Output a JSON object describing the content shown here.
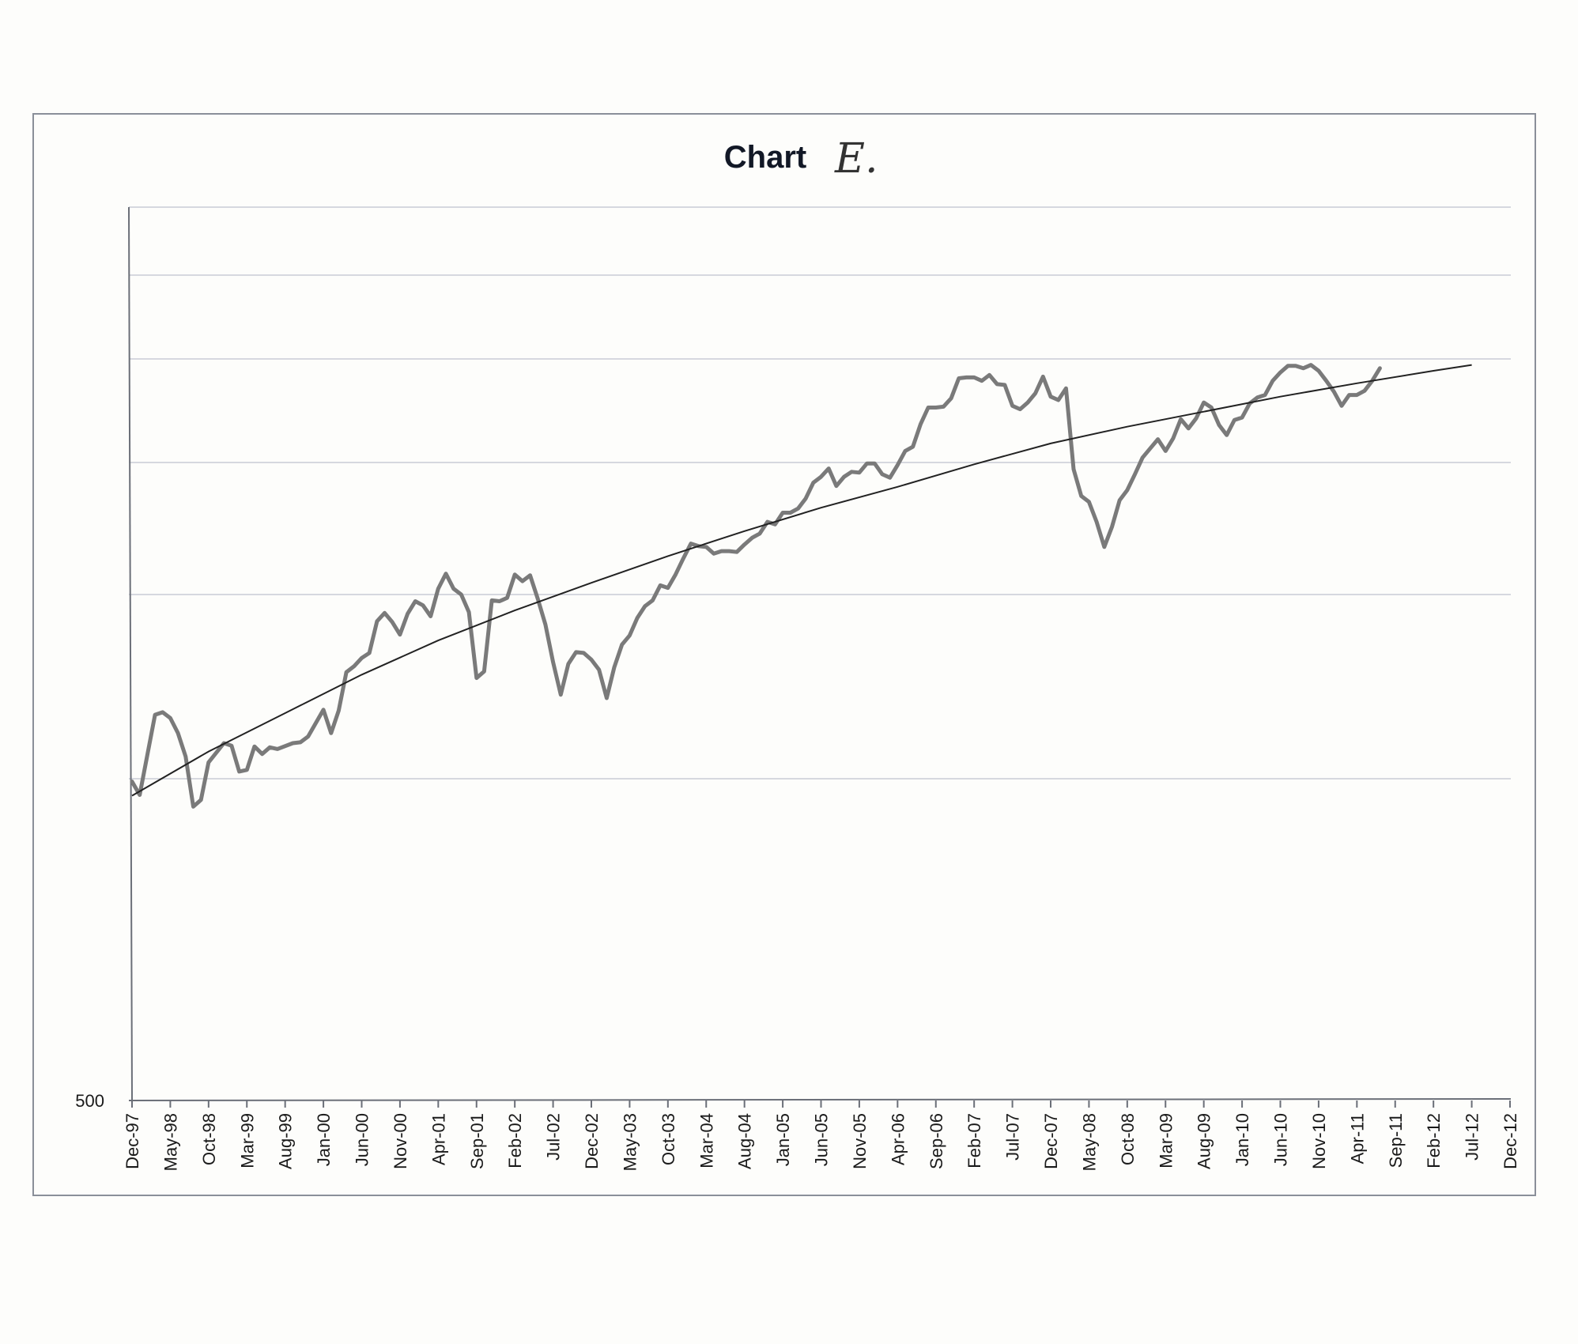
{
  "chart_data": {
    "type": "line",
    "title": "Chart",
    "annotation": "E.",
    "xlabel": "",
    "ylabel": "",
    "ylim": [
      500,
      1570
    ],
    "y_tick_labels": [
      "500"
    ],
    "grid": "horizontal",
    "x_tick_labels": [
      "Dec-97",
      "May-98",
      "Oct-98",
      "Mar-99",
      "Aug-99",
      "Jan-00",
      "Jun-00",
      "Nov-00",
      "Apr-01",
      "Sep-01",
      "Feb-02",
      "Jul-02",
      "Dec-02",
      "May-03",
      "Oct-03",
      "Mar-04",
      "Aug-04",
      "Jan-05",
      "Jun-05",
      "Nov-05",
      "Apr-06",
      "Sep-06",
      "Feb-07",
      "Jul-07",
      "Dec-07",
      "May-08",
      "Oct-08",
      "Mar-09",
      "Aug-09",
      "Jan-10",
      "Jun-10",
      "Nov-10",
      "Apr-11",
      "Sep-11",
      "Feb-12",
      "Jul-12",
      "Dec-12"
    ],
    "x_range_months": [
      0,
      180
    ],
    "series": [
      {
        "name": "",
        "style": "data",
        "points": [
          [
            0,
            882
          ],
          [
            1,
            866
          ],
          [
            3,
            962
          ],
          [
            4,
            965
          ],
          [
            5,
            958
          ],
          [
            6,
            940
          ],
          [
            7,
            912
          ],
          [
            8,
            852
          ],
          [
            9,
            860
          ],
          [
            10,
            905
          ],
          [
            12,
            928
          ],
          [
            13,
            925
          ],
          [
            14,
            894
          ],
          [
            15,
            896
          ],
          [
            16,
            924
          ],
          [
            17,
            915
          ],
          [
            18,
            923
          ],
          [
            19,
            921
          ],
          [
            21,
            928
          ],
          [
            22,
            929
          ],
          [
            23,
            936
          ],
          [
            25,
            968
          ],
          [
            26,
            940
          ],
          [
            27,
            967
          ],
          [
            28,
            1013
          ],
          [
            29,
            1020
          ],
          [
            30,
            1030
          ],
          [
            31,
            1036
          ],
          [
            32,
            1074
          ],
          [
            33,
            1084
          ],
          [
            34,
            1073
          ],
          [
            35,
            1058
          ],
          [
            36,
            1083
          ],
          [
            37,
            1098
          ],
          [
            38,
            1093
          ],
          [
            39,
            1080
          ],
          [
            40,
            1113
          ],
          [
            41,
            1131
          ],
          [
            42,
            1113
          ],
          [
            43,
            1106
          ],
          [
            44,
            1085
          ],
          [
            45,
            1006
          ],
          [
            46,
            1014
          ],
          [
            47,
            1099
          ],
          [
            48,
            1098
          ],
          [
            49,
            1102
          ],
          [
            50,
            1130
          ],
          [
            51,
            1122
          ],
          [
            52,
            1129
          ],
          [
            53,
            1101
          ],
          [
            54,
            1070
          ],
          [
            55,
            1025
          ],
          [
            56,
            986
          ],
          [
            57,
            1023
          ],
          [
            58,
            1037
          ],
          [
            59,
            1036
          ],
          [
            60,
            1028
          ],
          [
            61,
            1016
          ],
          [
            62,
            982
          ],
          [
            63,
            1019
          ],
          [
            64,
            1046
          ],
          [
            65,
            1057
          ],
          [
            66,
            1078
          ],
          [
            67,
            1092
          ],
          [
            68,
            1099
          ],
          [
            69,
            1117
          ],
          [
            70,
            1114
          ],
          [
            71,
            1130
          ],
          [
            72,
            1149
          ],
          [
            73,
            1167
          ],
          [
            74,
            1164
          ],
          [
            75,
            1163
          ],
          [
            76,
            1155
          ],
          [
            77,
            1158
          ],
          [
            78,
            1158
          ],
          [
            79,
            1157
          ],
          [
            80,
            1166
          ],
          [
            81,
            1174
          ],
          [
            82,
            1179
          ],
          [
            83,
            1193
          ],
          [
            84,
            1190
          ],
          [
            85,
            1204
          ],
          [
            86,
            1204
          ],
          [
            87,
            1209
          ],
          [
            88,
            1221
          ],
          [
            89,
            1240
          ],
          [
            90,
            1247
          ],
          [
            91,
            1257
          ],
          [
            92,
            1236
          ],
          [
            93,
            1247
          ],
          [
            94,
            1253
          ],
          [
            95,
            1252
          ],
          [
            96,
            1263
          ],
          [
            97,
            1263
          ],
          [
            98,
            1250
          ],
          [
            99,
            1246
          ],
          [
            100,
            1261
          ],
          [
            101,
            1278
          ],
          [
            102,
            1283
          ],
          [
            103,
            1310
          ],
          [
            104,
            1330
          ],
          [
            105,
            1330
          ],
          [
            106,
            1331
          ],
          [
            107,
            1341
          ],
          [
            108,
            1365
          ],
          [
            109,
            1366
          ],
          [
            110,
            1366
          ],
          [
            111,
            1362
          ],
          [
            112,
            1369
          ],
          [
            113,
            1358
          ],
          [
            114,
            1357
          ],
          [
            115,
            1332
          ],
          [
            116,
            1328
          ],
          [
            117,
            1336
          ],
          [
            118,
            1347
          ],
          [
            119,
            1367
          ],
          [
            120,
            1343
          ],
          [
            121,
            1339
          ],
          [
            122,
            1353
          ],
          [
            123,
            1256
          ],
          [
            124,
            1224
          ],
          [
            125,
            1217
          ],
          [
            126,
            1193
          ],
          [
            127,
            1163
          ],
          [
            128,
            1187
          ],
          [
            129,
            1219
          ],
          [
            130,
            1231
          ],
          [
            131,
            1250
          ],
          [
            132,
            1270
          ],
          [
            133,
            1281
          ],
          [
            134,
            1292
          ],
          [
            135,
            1278
          ],
          [
            136,
            1293
          ],
          [
            137,
            1316
          ],
          [
            138,
            1305
          ],
          [
            139,
            1317
          ],
          [
            140,
            1336
          ],
          [
            141,
            1330
          ],
          [
            142,
            1309
          ],
          [
            143,
            1297
          ],
          [
            144,
            1315
          ],
          [
            145,
            1318
          ],
          [
            146,
            1335
          ],
          [
            147,
            1342
          ],
          [
            148,
            1345
          ],
          [
            149,
            1362
          ],
          [
            150,
            1372
          ],
          [
            151,
            1380
          ],
          [
            152,
            1380
          ],
          [
            153,
            1377
          ],
          [
            154,
            1381
          ],
          [
            155,
            1374
          ],
          [
            156,
            1362
          ],
          [
            157,
            1349
          ],
          [
            158,
            1332
          ],
          [
            159,
            1345
          ],
          [
            160,
            1345
          ],
          [
            161,
            1350
          ],
          [
            162,
            1362
          ],
          [
            163,
            1377
          ]
        ]
      },
      {
        "name": "",
        "style": "trendline",
        "points": [
          [
            0,
            865
          ],
          [
            10,
            918
          ],
          [
            20,
            964
          ],
          [
            30,
            1010
          ],
          [
            40,
            1051
          ],
          [
            50,
            1087
          ],
          [
            60,
            1120
          ],
          [
            70,
            1152
          ],
          [
            80,
            1182
          ],
          [
            90,
            1210
          ],
          [
            100,
            1235
          ],
          [
            110,
            1262
          ],
          [
            120,
            1287
          ],
          [
            130,
            1307
          ],
          [
            140,
            1325
          ],
          [
            150,
            1343
          ],
          [
            160,
            1359
          ],
          [
            170,
            1374
          ],
          [
            175,
            1381
          ]
        ]
      }
    ]
  }
}
